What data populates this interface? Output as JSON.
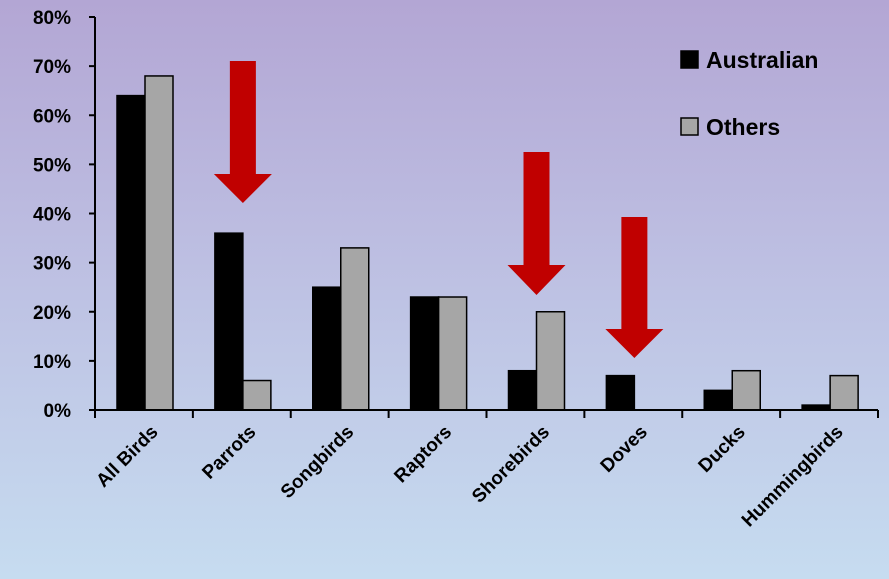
{
  "chart_data": {
    "type": "bar",
    "categories": [
      "All Birds",
      "Parrots",
      "Songbirds",
      "Raptors",
      "Shorebirds",
      "Doves",
      "Ducks",
      "Hummingbirds"
    ],
    "series": [
      {
        "name": "Australian",
        "values": [
          64,
          36,
          25,
          23,
          8,
          7,
          4,
          1
        ]
      },
      {
        "name": "Others",
        "values": [
          68,
          6,
          33,
          23,
          20,
          0,
          8,
          7
        ]
      }
    ],
    "ylim": [
      0,
      80
    ],
    "yticks": [
      {
        "value": 0,
        "label": "0%"
      },
      {
        "value": 10,
        "label": "10%"
      },
      {
        "value": 20,
        "label": "20%"
      },
      {
        "value": 30,
        "label": "30%"
      },
      {
        "value": 40,
        "label": "40%"
      },
      {
        "value": 50,
        "label": "50%"
      },
      {
        "value": 60,
        "label": "60%"
      },
      {
        "value": 70,
        "label": "70%"
      },
      {
        "value": 80,
        "label": "80%"
      }
    ],
    "legend": {
      "placement": "top-right"
    },
    "colors": {
      "Australian": "#000000",
      "Others": "#a6a6a6",
      "arrow": "#c00000"
    },
    "annotations": [
      {
        "type": "down-arrow",
        "category": "Parrots"
      },
      {
        "type": "down-arrow",
        "category": "Shorebirds"
      },
      {
        "type": "down-arrow",
        "category": "Doves"
      }
    ]
  }
}
